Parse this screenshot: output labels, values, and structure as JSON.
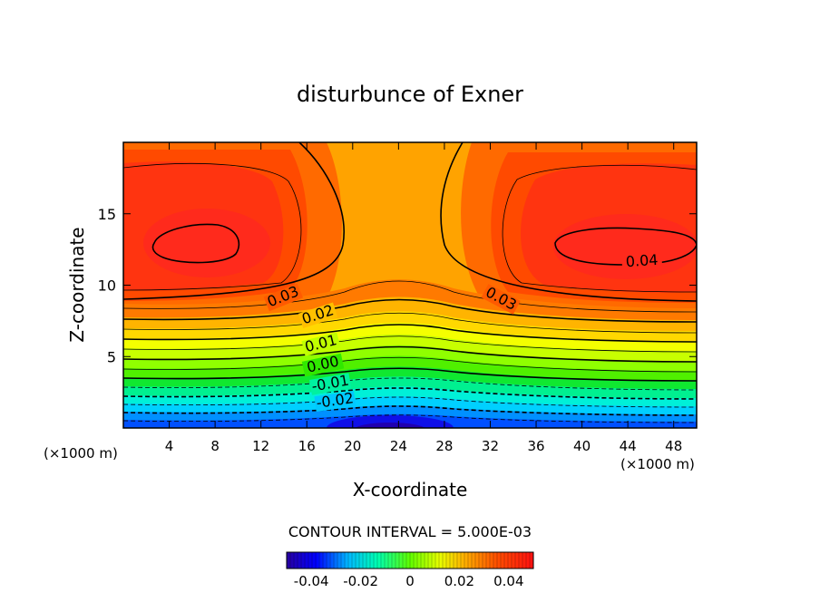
{
  "chart_data": {
    "type": "heatmap",
    "title": "disturbunce of Exner",
    "xlabel": "X-coordinate",
    "ylabel": "Z-coordinate",
    "x_unit": "(×1000 m)",
    "xlim": [
      0,
      50
    ],
    "ylim": [
      0,
      20
    ],
    "x_ticks": [
      4,
      8,
      12,
      16,
      20,
      24,
      28,
      32,
      36,
      40,
      44,
      48
    ],
    "y_ticks": [
      5,
      10,
      15
    ],
    "contour_labels": [
      "0.03",
      "0.02",
      "0.01",
      "0.00",
      "-0.01",
      "-0.02",
      "0.03",
      "0.04"
    ],
    "contour_interval_text": "CONTOUR INTERVAL = 5.000E-03",
    "colorbar": {
      "ticks": [
        "-0.04",
        "-0.02",
        "0",
        "0.02",
        "0.04"
      ],
      "values": [
        -0.04,
        -0.02,
        0,
        0.02,
        0.04
      ],
      "range": [
        -0.05,
        0.05
      ]
    }
  }
}
